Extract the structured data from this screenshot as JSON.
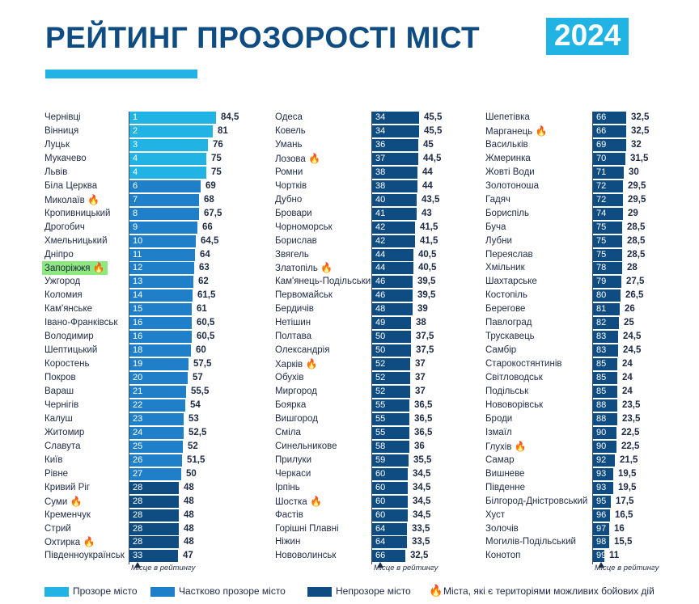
{
  "header": {
    "title": "РЕЙТИНГ ПРОЗОРОСТІ МІСТ",
    "year": "2024"
  },
  "axis_note": "Місце в рейтингу",
  "legend": {
    "transparent": "Прозоре місто",
    "partial": "Частково прозоре місто",
    "opaque": "Непрозоре місто",
    "combat": "Міста, які є територіями можливих бойових дій"
  },
  "colors": {
    "transparent": "#21b3e3",
    "partial": "#1f7fc9",
    "opaque": "#0f4c81",
    "fire": "#f39a1a",
    "highlight": "#8ee87f"
  },
  "chart_data": {
    "type": "bar",
    "title": "РЕЙТИНГ ПРОЗОРОСТІ МІСТ 2024",
    "xlabel": "Місце в рейтингу",
    "columns": [
      [
        {
          "city": "Чернівці",
          "rank": "1",
          "score": "84,5",
          "value": 84.5,
          "cat": "transparent"
        },
        {
          "city": "Вінниця",
          "rank": "2",
          "score": "81",
          "value": 81,
          "cat": "transparent"
        },
        {
          "city": "Луцьк",
          "rank": "3",
          "score": "76",
          "value": 76,
          "cat": "transparent"
        },
        {
          "city": "Мукачево",
          "rank": "4",
          "score": "75",
          "value": 75,
          "cat": "transparent"
        },
        {
          "city": "Львів",
          "rank": "4",
          "score": "75",
          "value": 75,
          "cat": "transparent"
        },
        {
          "city": "Біла Церква",
          "rank": "6",
          "score": "69",
          "value": 69,
          "cat": "partial"
        },
        {
          "city": "Миколаїв",
          "rank": "7",
          "score": "68",
          "value": 68,
          "cat": "partial",
          "fire": true
        },
        {
          "city": "Кропивницький",
          "rank": "8",
          "score": "67,5",
          "value": 67.5,
          "cat": "partial"
        },
        {
          "city": "Дрогобич",
          "rank": "9",
          "score": "66",
          "value": 66,
          "cat": "partial"
        },
        {
          "city": "Хмельницький",
          "rank": "10",
          "score": "64,5",
          "value": 64.5,
          "cat": "partial"
        },
        {
          "city": "Дніпро",
          "rank": "11",
          "score": "64",
          "value": 64,
          "cat": "partial"
        },
        {
          "city": "Запоріжжя",
          "rank": "12",
          "score": "63",
          "value": 63,
          "cat": "partial",
          "fire": true,
          "highlight": true
        },
        {
          "city": "Ужгород",
          "rank": "13",
          "score": "62",
          "value": 62,
          "cat": "partial"
        },
        {
          "city": "Коломия",
          "rank": "14",
          "score": "61,5",
          "value": 61.5,
          "cat": "partial"
        },
        {
          "city": "Кам'янське",
          "rank": "15",
          "score": "61",
          "value": 61,
          "cat": "partial"
        },
        {
          "city": "Івано-Франківськ",
          "rank": "16",
          "score": "60,5",
          "value": 60.5,
          "cat": "partial"
        },
        {
          "city": "Володимир",
          "rank": "16",
          "score": "60,5",
          "value": 60.5,
          "cat": "partial"
        },
        {
          "city": "Шептицький",
          "rank": "18",
          "score": "60",
          "value": 60,
          "cat": "partial"
        },
        {
          "city": "Коростень",
          "rank": "19",
          "score": "57,5",
          "value": 57.5,
          "cat": "partial"
        },
        {
          "city": "Покров",
          "rank": "20",
          "score": "57",
          "value": 57,
          "cat": "partial"
        },
        {
          "city": "Вараш",
          "rank": "21",
          "score": "55,5",
          "value": 55.5,
          "cat": "partial"
        },
        {
          "city": "Чернігів",
          "rank": "22",
          "score": "54",
          "value": 54,
          "cat": "partial"
        },
        {
          "city": "Калуш",
          "rank": "23",
          "score": "53",
          "value": 53,
          "cat": "partial"
        },
        {
          "city": "Житомир",
          "rank": "24",
          "score": "52,5",
          "value": 52.5,
          "cat": "partial"
        },
        {
          "city": "Славута",
          "rank": "25",
          "score": "52",
          "value": 52,
          "cat": "partial"
        },
        {
          "city": "Київ",
          "rank": "26",
          "score": "51,5",
          "value": 51.5,
          "cat": "partial"
        },
        {
          "city": "Рівне",
          "rank": "27",
          "score": "50",
          "value": 50,
          "cat": "partial"
        },
        {
          "city": "Кривий Ріг",
          "rank": "28",
          "score": "48",
          "value": 48,
          "cat": "opaque"
        },
        {
          "city": "Суми",
          "rank": "28",
          "score": "48",
          "value": 48,
          "cat": "opaque",
          "fire": true
        },
        {
          "city": "Кременчук",
          "rank": "28",
          "score": "48",
          "value": 48,
          "cat": "opaque"
        },
        {
          "city": "Стрий",
          "rank": "28",
          "score": "48",
          "value": 48,
          "cat": "opaque"
        },
        {
          "city": "Охтирка",
          "rank": "28",
          "score": "48",
          "value": 48,
          "cat": "opaque",
          "fire": true
        },
        {
          "city": "Південноукраїнськ",
          "rank": "33",
          "score": "47",
          "value": 47,
          "cat": "opaque"
        }
      ],
      [
        {
          "city": "Одеса",
          "rank": "34",
          "score": "45,5",
          "value": 45.5,
          "cat": "opaque"
        },
        {
          "city": "Ковель",
          "rank": "34",
          "score": "45,5",
          "value": 45.5,
          "cat": "opaque"
        },
        {
          "city": "Умань",
          "rank": "36",
          "score": "45",
          "value": 45,
          "cat": "opaque"
        },
        {
          "city": "Лозова",
          "rank": "37",
          "score": "44,5",
          "value": 44.5,
          "cat": "opaque",
          "fire": true
        },
        {
          "city": "Ромни",
          "rank": "38",
          "score": "44",
          "value": 44,
          "cat": "opaque"
        },
        {
          "city": "Чортків",
          "rank": "38",
          "score": "44",
          "value": 44,
          "cat": "opaque"
        },
        {
          "city": "Дубно",
          "rank": "40",
          "score": "43,5",
          "value": 43.5,
          "cat": "opaque"
        },
        {
          "city": "Бровари",
          "rank": "41",
          "score": "43",
          "value": 43,
          "cat": "opaque"
        },
        {
          "city": "Чорноморськ",
          "rank": "42",
          "score": "41,5",
          "value": 41.5,
          "cat": "opaque"
        },
        {
          "city": "Борислав",
          "rank": "42",
          "score": "41,5",
          "value": 41.5,
          "cat": "opaque"
        },
        {
          "city": "Звягель",
          "rank": "44",
          "score": "40,5",
          "value": 40.5,
          "cat": "opaque"
        },
        {
          "city": "Златопіль",
          "rank": "44",
          "score": "40,5",
          "value": 40.5,
          "cat": "opaque",
          "fire": true
        },
        {
          "city": "Кам'янець-Подільський",
          "rank": "46",
          "score": "39,5",
          "value": 39.5,
          "cat": "opaque"
        },
        {
          "city": "Первомайськ",
          "rank": "46",
          "score": "39,5",
          "value": 39.5,
          "cat": "opaque"
        },
        {
          "city": "Бердичів",
          "rank": "48",
          "score": "39",
          "value": 39,
          "cat": "opaque"
        },
        {
          "city": "Нетішин",
          "rank": "49",
          "score": "38",
          "value": 38,
          "cat": "opaque"
        },
        {
          "city": "Полтава",
          "rank": "50",
          "score": "37,5",
          "value": 37.5,
          "cat": "opaque"
        },
        {
          "city": "Олександрія",
          "rank": "50",
          "score": "37,5",
          "value": 37.5,
          "cat": "opaque"
        },
        {
          "city": "Харків",
          "rank": "52",
          "score": "37",
          "value": 37,
          "cat": "opaque",
          "fire": true
        },
        {
          "city": "Обухів",
          "rank": "52",
          "score": "37",
          "value": 37,
          "cat": "opaque"
        },
        {
          "city": "Миргород",
          "rank": "52",
          "score": "37",
          "value": 37,
          "cat": "opaque"
        },
        {
          "city": "Боярка",
          "rank": "55",
          "score": "36,5",
          "value": 36.5,
          "cat": "opaque"
        },
        {
          "city": "Вишгород",
          "rank": "55",
          "score": "36,5",
          "value": 36.5,
          "cat": "opaque"
        },
        {
          "city": "Сміла",
          "rank": "55",
          "score": "36,5",
          "value": 36.5,
          "cat": "opaque"
        },
        {
          "city": "Синельникове",
          "rank": "58",
          "score": "36",
          "value": 36,
          "cat": "opaque"
        },
        {
          "city": "Прилуки",
          "rank": "59",
          "score": "35,5",
          "value": 35.5,
          "cat": "opaque"
        },
        {
          "city": "Черкаси",
          "rank": "60",
          "score": "34,5",
          "value": 34.5,
          "cat": "opaque"
        },
        {
          "city": "Ірпінь",
          "rank": "60",
          "score": "34,5",
          "value": 34.5,
          "cat": "opaque"
        },
        {
          "city": "Шостка",
          "rank": "60",
          "score": "34,5",
          "value": 34.5,
          "cat": "opaque",
          "fire": true
        },
        {
          "city": "Фастів",
          "rank": "60",
          "score": "34,5",
          "value": 34.5,
          "cat": "opaque"
        },
        {
          "city": "Горішні Плавні",
          "rank": "64",
          "score": "33,5",
          "value": 33.5,
          "cat": "opaque"
        },
        {
          "city": "Ніжин",
          "rank": "64",
          "score": "33,5",
          "value": 33.5,
          "cat": "opaque"
        },
        {
          "city": "Нововолинськ",
          "rank": "66",
          "score": "32,5",
          "value": 32.5,
          "cat": "opaque"
        }
      ],
      [
        {
          "city": "Шепетівка",
          "rank": "66",
          "score": "32,5",
          "value": 32.5,
          "cat": "opaque"
        },
        {
          "city": "Марганець",
          "rank": "66",
          "score": "32,5",
          "value": 32.5,
          "cat": "opaque",
          "fire": true
        },
        {
          "city": "Васильків",
          "rank": "69",
          "score": "32",
          "value": 32,
          "cat": "opaque"
        },
        {
          "city": "Жмеринка",
          "rank": "70",
          "score": "31,5",
          "value": 31.5,
          "cat": "opaque"
        },
        {
          "city": "Жовті Води",
          "rank": "71",
          "score": "30",
          "value": 30,
          "cat": "opaque"
        },
        {
          "city": "Золотоноша",
          "rank": "72",
          "score": "29,5",
          "value": 29.5,
          "cat": "opaque"
        },
        {
          "city": "Гадяч",
          "rank": "72",
          "score": "29,5",
          "value": 29.5,
          "cat": "opaque"
        },
        {
          "city": "Бориспіль",
          "rank": "74",
          "score": "29",
          "value": 29,
          "cat": "opaque"
        },
        {
          "city": "Буча",
          "rank": "75",
          "score": "28,5",
          "value": 28.5,
          "cat": "opaque"
        },
        {
          "city": "Лубни",
          "rank": "75",
          "score": "28,5",
          "value": 28.5,
          "cat": "opaque"
        },
        {
          "city": "Переяслав",
          "rank": "75",
          "score": "28,5",
          "value": 28.5,
          "cat": "opaque"
        },
        {
          "city": "Хмільник",
          "rank": "78",
          "score": "28",
          "value": 28,
          "cat": "opaque"
        },
        {
          "city": "Шахтарське",
          "rank": "79",
          "score": "27,5",
          "value": 27.5,
          "cat": "opaque"
        },
        {
          "city": "Костопіль",
          "rank": "80",
          "score": "26,5",
          "value": 26.5,
          "cat": "opaque"
        },
        {
          "city": "Берегове",
          "rank": "81",
          "score": "26",
          "value": 26,
          "cat": "opaque"
        },
        {
          "city": "Павлоград",
          "rank": "82",
          "score": "25",
          "value": 25,
          "cat": "opaque"
        },
        {
          "city": "Трускавець",
          "rank": "83",
          "score": "24,5",
          "value": 24.5,
          "cat": "opaque"
        },
        {
          "city": "Самбір",
          "rank": "83",
          "score": "24,5",
          "value": 24.5,
          "cat": "opaque"
        },
        {
          "city": "Старокостянтинів",
          "rank": "85",
          "score": "24",
          "value": 24,
          "cat": "opaque"
        },
        {
          "city": "Світловодськ",
          "rank": "85",
          "score": "24",
          "value": 24,
          "cat": "opaque"
        },
        {
          "city": "Подільськ",
          "rank": "85",
          "score": "24",
          "value": 24,
          "cat": "opaque"
        },
        {
          "city": "Нововорівськ",
          "rank": "88",
          "score": "23,5",
          "value": 23.5,
          "cat": "opaque"
        },
        {
          "city": "Броди",
          "rank": "88",
          "score": "23,5",
          "value": 23.5,
          "cat": "opaque"
        },
        {
          "city": "Ізмаїл",
          "rank": "90",
          "score": "22,5",
          "value": 22.5,
          "cat": "opaque"
        },
        {
          "city": "Глухів",
          "rank": "90",
          "score": "22,5",
          "value": 22.5,
          "cat": "opaque",
          "fire": true
        },
        {
          "city": "Самар",
          "rank": "92",
          "score": "21,5",
          "value": 21.5,
          "cat": "opaque"
        },
        {
          "city": "Вишневе",
          "rank": "93",
          "score": "19,5",
          "value": 19.5,
          "cat": "opaque"
        },
        {
          "city": "Південне",
          "rank": "93",
          "score": "19,5",
          "value": 19.5,
          "cat": "opaque"
        },
        {
          "city": "Білгород-Дністровський",
          "rank": "95",
          "score": "17,5",
          "value": 17.5,
          "cat": "opaque"
        },
        {
          "city": "Хуст",
          "rank": "96",
          "score": "16,5",
          "value": 16.5,
          "cat": "opaque"
        },
        {
          "city": "Золочів",
          "rank": "97",
          "score": "16",
          "value": 16,
          "cat": "opaque"
        },
        {
          "city": "Могилів-Подільський",
          "rank": "98",
          "score": "15,5",
          "value": 15.5,
          "cat": "opaque"
        },
        {
          "city": "Конотоп",
          "rank": "99",
          "score": "11",
          "value": 11,
          "cat": "opaque"
        }
      ]
    ]
  }
}
